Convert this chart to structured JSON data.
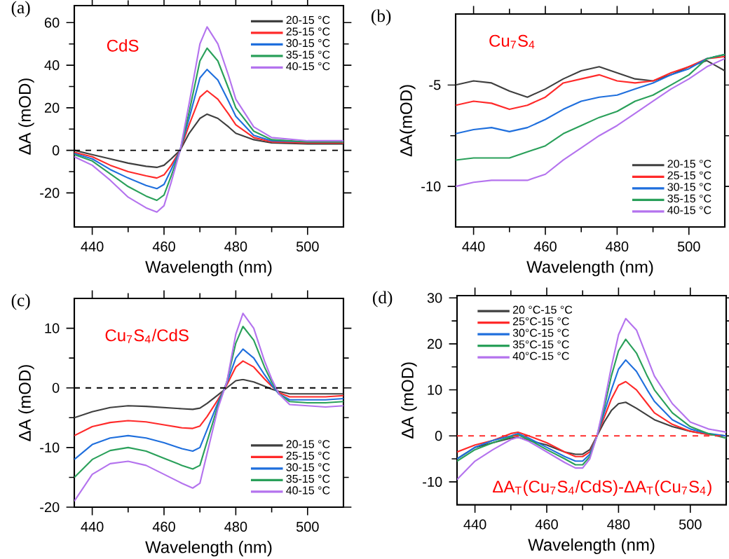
{
  "chart_data": [
    {
      "type": "line",
      "title": "(a)",
      "xlabel": "Wavelength (nm)",
      "ylabel": "ΔA (mOD)",
      "annotations": [
        "CdS"
      ],
      "legend": "top right",
      "xlim": [
        435,
        510
      ],
      "xticks": [
        440,
        460,
        480,
        500
      ],
      "ylim": [
        -36,
        68
      ],
      "yticks": [
        -20,
        0,
        20,
        40,
        60
      ],
      "ref_lines": [
        {
          "axis": "y",
          "value": 0,
          "color": "#000000",
          "line_style": "dashed"
        }
      ],
      "x": [
        435,
        440,
        445,
        450,
        455,
        458,
        460,
        462,
        464.5,
        467,
        470,
        472,
        475,
        478,
        480,
        485,
        490,
        500,
        510
      ],
      "series": [
        {
          "name": "20-15 °C",
          "color": "#3f3f3f",
          "values": [
            0,
            -2,
            -4,
            -6,
            -7.5,
            -8,
            -7,
            -4,
            0,
            8,
            15,
            17,
            15,
            11,
            8,
            5,
            3.5,
            3,
            3
          ]
        },
        {
          "name": "25-15 °C",
          "color": "#ff2a2a",
          "values": [
            -1,
            -3,
            -7,
            -10,
            -12,
            -13,
            -11.5,
            -7,
            0,
            12,
            25,
            28,
            24,
            17,
            12,
            6,
            4,
            3.5,
            3.5
          ]
        },
        {
          "name": "30-15 °C",
          "color": "#1f6fdd",
          "values": [
            -1.5,
            -4,
            -9,
            -13,
            -16.5,
            -18,
            -16,
            -9,
            0,
            15,
            34,
            38,
            33,
            23,
            16,
            7,
            4.5,
            4,
            4
          ]
        },
        {
          "name": "35-15 °C",
          "color": "#2aa05a",
          "values": [
            -2,
            -5,
            -11,
            -17,
            -21.5,
            -23.5,
            -21,
            -12,
            0,
            18,
            42,
            48,
            42,
            29,
            20,
            9,
            5,
            4,
            4
          ]
        },
        {
          "name": "40-15 °C",
          "color": "#b473ee",
          "values": [
            -3,
            -7,
            -14,
            -22,
            -27,
            -29,
            -26,
            -15,
            0,
            22,
            50,
            58,
            50,
            35,
            24,
            11,
            6,
            4.5,
            4.5
          ]
        }
      ]
    },
    {
      "type": "line",
      "title": "(b)",
      "xlabel": "Wavelength (nm)",
      "ylabel": "ΔA(mOD)",
      "annotations": [
        "Cu$_{7}$S$_{4}$"
      ],
      "legend": "bottom right",
      "xlim": [
        435,
        510
      ],
      "xticks": [
        440,
        460,
        480,
        500
      ],
      "ylim": [
        -12,
        -1.5
      ],
      "yticks": [
        -10,
        -5
      ],
      "x": [
        435,
        440,
        445,
        450,
        455,
        460,
        465,
        470,
        475,
        480,
        485,
        490,
        495,
        500,
        505,
        510
      ],
      "series": [
        {
          "name": "20-15 °C",
          "color": "#3f3f3f",
          "values": [
            -5.0,
            -4.8,
            -4.9,
            -5.3,
            -5.6,
            -5.2,
            -4.7,
            -4.3,
            -4.1,
            -4.4,
            -4.7,
            -4.8,
            -4.5,
            -4.1,
            -3.8,
            -4.3
          ]
        },
        {
          "name": "25-15 °C",
          "color": "#ff2a2a",
          "values": [
            -6.0,
            -5.8,
            -5.9,
            -6.2,
            -6.0,
            -5.6,
            -4.9,
            -4.7,
            -4.5,
            -4.8,
            -4.9,
            -4.8,
            -4.4,
            -4.1,
            -3.7,
            -3.6
          ]
        },
        {
          "name": "30-15 °C",
          "color": "#1f6fdd",
          "values": [
            -7.4,
            -7.2,
            -7.1,
            -7.3,
            -7.1,
            -6.7,
            -6.2,
            -5.8,
            -5.6,
            -5.5,
            -5.2,
            -4.9,
            -4.5,
            -4.2,
            -3.7,
            -3.5
          ]
        },
        {
          "name": "35-15 °C",
          "color": "#2aa05a",
          "values": [
            -8.7,
            -8.6,
            -8.6,
            -8.6,
            -8.3,
            -8.0,
            -7.4,
            -7.0,
            -6.6,
            -6.3,
            -5.8,
            -5.5,
            -5.0,
            -4.5,
            -3.7,
            -3.5
          ]
        },
        {
          "name": "40-15 °C",
          "color": "#b473ee",
          "values": [
            -10.0,
            -9.8,
            -9.7,
            -9.7,
            -9.7,
            -9.4,
            -8.7,
            -8.1,
            -7.5,
            -7.0,
            -6.4,
            -5.8,
            -5.2,
            -4.7,
            -4.1,
            -3.7
          ]
        }
      ]
    },
    {
      "type": "line",
      "title": "(c)",
      "xlabel": "Wavelength (nm)",
      "ylabel": "ΔA (mOD)",
      "annotations": [
        "Cu$_{7}$S$_{4}$/CdS"
      ],
      "legend": "bottom right",
      "xlim": [
        435,
        510
      ],
      "xticks": [
        440,
        460,
        480,
        500
      ],
      "ylim": [
        -20,
        15
      ],
      "yticks": [
        -20,
        -10,
        0,
        10
      ],
      "ref_lines": [
        {
          "axis": "y",
          "value": 0,
          "color": "#000000",
          "line_style": "dashed"
        }
      ],
      "x": [
        435,
        440,
        445,
        450,
        455,
        460,
        465,
        468,
        470,
        472,
        475,
        477.5,
        480,
        482,
        485,
        488,
        490,
        492,
        495,
        500,
        505,
        510
      ],
      "series": [
        {
          "name": "20-15 °C",
          "color": "#3f3f3f",
          "values": [
            -5,
            -4,
            -3.3,
            -3,
            -3.1,
            -3.3,
            -3.5,
            -3.6,
            -3.4,
            -2.6,
            -1.2,
            0,
            1.2,
            1.4,
            1,
            0.3,
            -0.2,
            -0.6,
            -1,
            -1,
            -1,
            -1
          ]
        },
        {
          "name": "25-15 °C",
          "color": "#ff2a2a",
          "values": [
            -8,
            -6.5,
            -5.8,
            -5.5,
            -5.7,
            -6.2,
            -6.7,
            -6.8,
            -6.4,
            -4.8,
            -2,
            0.5,
            3.5,
            4.5,
            3.5,
            1.5,
            0.3,
            -0.8,
            -1.5,
            -1.5,
            -1.5,
            -1.3
          ]
        },
        {
          "name": "30-15 °C",
          "color": "#1f6fdd",
          "values": [
            -12,
            -9.5,
            -8.4,
            -8,
            -8.4,
            -9.2,
            -10.2,
            -10.6,
            -10,
            -7,
            -2.5,
            0.8,
            5,
            6.5,
            5,
            2.2,
            0.5,
            -1,
            -2,
            -2,
            -2,
            -1.8
          ]
        },
        {
          "name": "35-15 °C",
          "color": "#2aa05a",
          "values": [
            -15,
            -12,
            -10.5,
            -10,
            -10.6,
            -11.8,
            -13,
            -13.6,
            -13,
            -9,
            -3,
            1,
            7.5,
            10.3,
            8,
            3.5,
            1,
            -1,
            -2.3,
            -2.5,
            -2.5,
            -2.3
          ]
        },
        {
          "name": "40-15 °C",
          "color": "#b473ee",
          "values": [
            -19,
            -14.5,
            -12.7,
            -12.3,
            -13,
            -14.5,
            -16,
            -16.8,
            -16,
            -11,
            -3.5,
            1,
            9,
            12.5,
            10,
            4.5,
            1.5,
            -1,
            -2.8,
            -3,
            -3.2,
            -3
          ]
        }
      ]
    },
    {
      "type": "line",
      "title": "(d)",
      "xlabel": "Wavelength (nm)",
      "ylabel": "ΔA (mOD)",
      "annotations": [
        "ΔA$_{T}$(Cu$_{7}$S$_{4}$/CdS)-ΔA$_{T}$(Cu$_{7}$S$_{4}$)"
      ],
      "legend": "top left",
      "xlim": [
        435,
        510
      ],
      "xticks": [
        440,
        460,
        480,
        500
      ],
      "ylim": [
        -15,
        30.5
      ],
      "yticks": [
        -10,
        0,
        10,
        20,
        30
      ],
      "ref_lines": [
        {
          "axis": "y",
          "value": 0,
          "color": "#ff2a2a",
          "line_style": "dashed"
        }
      ],
      "x": [
        435,
        440,
        445,
        450,
        452,
        455,
        460,
        465,
        468,
        470,
        472,
        474,
        476,
        478,
        480,
        482,
        485,
        488,
        490,
        495,
        500,
        505,
        510
      ],
      "series": [
        {
          "name": "20 °C-15 °C",
          "color": "#3f3f3f",
          "values": [
            -5,
            -2.5,
            -1.5,
            -0.5,
            -0.3,
            -1,
            -2,
            -3.5,
            -4,
            -4,
            -3,
            0,
            3,
            5.5,
            7,
            7.3,
            6,
            4.5,
            3.5,
            2,
            1,
            0.3,
            0
          ]
        },
        {
          "name": "25°C-15 °C",
          "color": "#ff2a2a",
          "values": [
            -3.5,
            -2,
            -1,
            0.5,
            0.8,
            0,
            -1.5,
            -3.5,
            -4.5,
            -4.5,
            -3.5,
            0,
            4,
            8,
            11,
            11.8,
            10,
            7,
            5,
            2.5,
            1,
            0.3,
            0
          ]
        },
        {
          "name": "30°C-15 °C",
          "color": "#1f6fdd",
          "values": [
            -5,
            -2.5,
            -1,
            0,
            0.5,
            -0.5,
            -2.5,
            -4.5,
            -5.5,
            -5.5,
            -4,
            0,
            5,
            10,
            14.5,
            16.5,
            14,
            10,
            7.5,
            3.5,
            1.5,
            0.5,
            0
          ]
        },
        {
          "name": "35°C-15 °C",
          "color": "#2aa05a",
          "values": [
            -5.5,
            -3,
            -1.5,
            -0.2,
            0.2,
            -0.8,
            -3,
            -5,
            -6.3,
            -6.3,
            -4.5,
            0,
            6,
            13,
            18.5,
            21,
            18,
            13,
            10,
            5,
            2,
            0.5,
            -0.5
          ]
        },
        {
          "name": "40°C-15 °C",
          "color": "#b473ee",
          "values": [
            -9.5,
            -5.5,
            -3,
            -0.8,
            -0.3,
            -1.2,
            -3.5,
            -5.8,
            -7,
            -7,
            -5,
            0,
            7,
            15,
            22,
            25.5,
            23,
            17,
            13,
            7,
            3,
            1.5,
            0.8
          ]
        }
      ]
    }
  ]
}
